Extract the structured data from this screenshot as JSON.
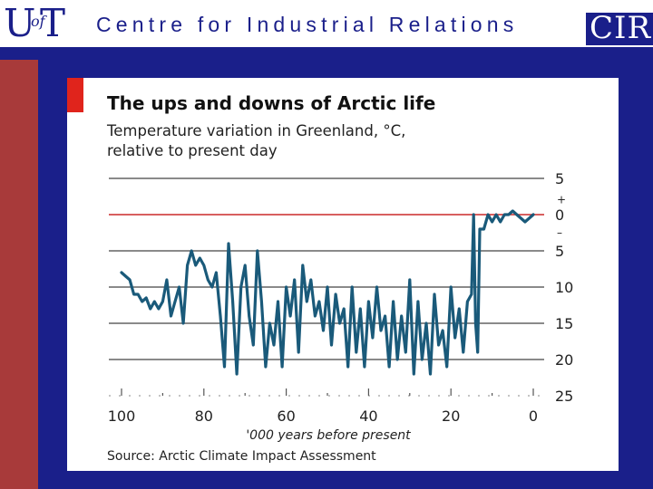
{
  "header": {
    "logo_u": "U",
    "logo_of": "of",
    "logo_t": "T",
    "site_title": "Centre for Industrial Relations",
    "logo_cir": "CIR"
  },
  "colors": {
    "brand_navy": "#1a1f8a",
    "brand_maroon": "#a83a3a",
    "chart_line": "#1a5a7a",
    "zero_line": "#cc2a2a",
    "gridline": "#444444",
    "accent_tab": "#e0241c"
  },
  "chart_data": {
    "type": "line",
    "title": "The ups and downs of Arctic life",
    "subtitle_lines": [
      "Temperature variation in Greenland, °C,",
      "relative to present day"
    ],
    "xlabel": "'000 years before present",
    "source": "Source: Arctic Climate Impact Assessment",
    "xlim": [
      100,
      0
    ],
    "ylim": [
      5,
      -25
    ],
    "x_ticks": [
      100,
      80,
      60,
      40,
      20,
      0
    ],
    "x_tick_labels": [
      "100",
      "80",
      "60",
      "40",
      "20",
      "0"
    ],
    "y_ticks": [
      5,
      0,
      -5,
      -10,
      -15,
      -20,
      -25
    ],
    "y_tick_labels": [
      "5",
      "0",
      "5",
      "10",
      "15",
      "20",
      "25"
    ],
    "y_sign_plus": "+",
    "y_sign_minus": "–",
    "reference_line_y": 0,
    "series": [
      {
        "name": "Greenland temperature",
        "x": [
          100,
          99,
          98,
          97,
          96,
          95,
          94,
          93,
          92,
          91,
          90,
          89,
          88,
          87,
          86,
          85,
          84,
          83,
          82,
          81,
          80,
          79,
          78,
          77,
          76,
          75,
          74,
          73,
          72,
          71,
          70,
          69,
          68,
          67,
          66,
          65,
          64,
          63,
          62,
          61,
          60,
          59,
          58,
          57,
          56,
          55,
          54,
          53,
          52,
          51,
          50,
          49,
          48,
          47,
          46,
          45,
          44,
          43,
          42,
          41,
          40,
          39,
          38,
          37,
          36,
          35,
          34,
          33,
          32,
          31,
          30,
          29,
          28,
          27,
          26,
          25,
          24,
          23,
          22,
          21,
          20,
          19,
          18,
          17,
          16,
          15,
          14.5,
          14,
          13.5,
          13,
          12,
          11,
          10,
          9,
          8,
          7,
          6,
          5,
          4,
          3,
          2,
          1,
          0
        ],
        "y": [
          -8,
          -8.5,
          -9,
          -11,
          -11,
          -12,
          -11.5,
          -13,
          -12,
          -13,
          -12,
          -9,
          -14,
          -12,
          -10,
          -15,
          -7,
          -5,
          -7,
          -6,
          -7,
          -9,
          -10,
          -8,
          -14,
          -21,
          -4,
          -12,
          -22,
          -10,
          -7,
          -14,
          -18,
          -5,
          -12,
          -21,
          -15,
          -18,
          -12,
          -21,
          -10,
          -14,
          -9,
          -19,
          -7,
          -12,
          -9,
          -14,
          -12,
          -16,
          -10,
          -18,
          -11,
          -15,
          -13,
          -21,
          -10,
          -19,
          -13,
          -21,
          -12,
          -17,
          -10,
          -16,
          -14,
          -21,
          -12,
          -20,
          -14,
          -19,
          -9,
          -22,
          -12,
          -20,
          -15,
          -22,
          -11,
          -18,
          -16,
          -21,
          -10,
          -17,
          -13,
          -19,
          -12,
          -11,
          0,
          -15,
          -19,
          -2,
          -2,
          0,
          -1,
          0,
          -1,
          0,
          0,
          0.5,
          0,
          -0.5,
          -1,
          -0.5,
          0
        ]
      }
    ]
  }
}
